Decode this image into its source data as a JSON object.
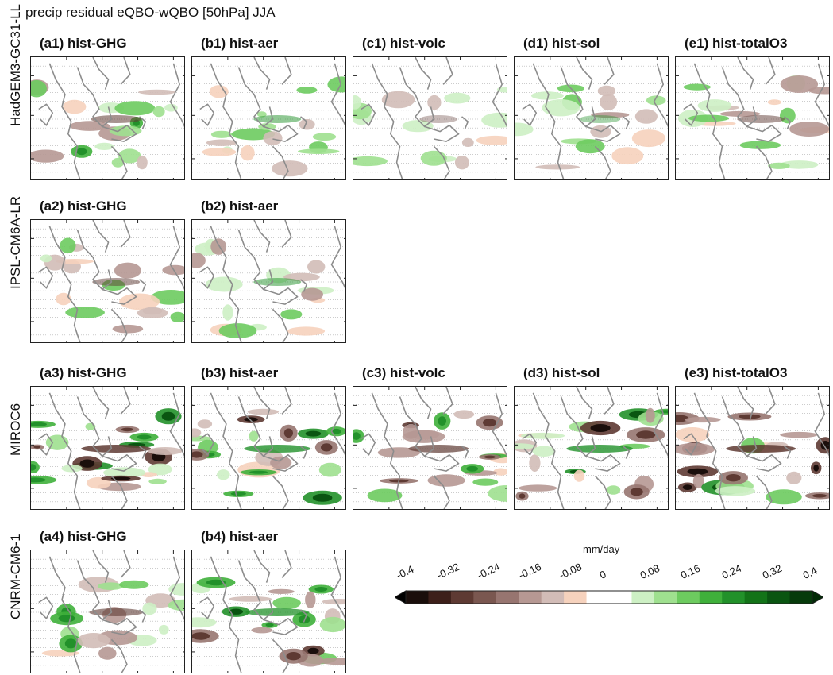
{
  "figure": {
    "title": "precip residual eQBO-wQBO [50hPa] JJA"
  },
  "rows": [
    {
      "model": "HadGEM3-GC31-LL",
      "panels": [
        {
          "label": "(a1)  hist-GHG",
          "seed": 11,
          "intensity": 0.55
        },
        {
          "label": "(b1)  hist-aer",
          "seed": 12,
          "intensity": 0.5
        },
        {
          "label": "(c1)  hist-volc",
          "seed": 13,
          "intensity": 0.35
        },
        {
          "label": "(d1)  hist-sol",
          "seed": 14,
          "intensity": 0.4
        },
        {
          "label": "(e1)  hist-totalO3",
          "seed": 15,
          "intensity": 0.5
        }
      ]
    },
    {
      "model": "IPSL-CM6A-LR",
      "panels": [
        {
          "label": "(a2)  hist-GHG",
          "seed": 21,
          "intensity": 0.5
        },
        {
          "label": "(b2)  hist-aer",
          "seed": 22,
          "intensity": 0.5
        }
      ]
    },
    {
      "model": "MIROC6",
      "panels": [
        {
          "label": "(a3)  hist-GHG",
          "seed": 31,
          "intensity": 0.85
        },
        {
          "label": "(b3)  hist-aer",
          "seed": 32,
          "intensity": 0.8
        },
        {
          "label": "(c3)  hist-volc",
          "seed": 33,
          "intensity": 0.7
        },
        {
          "label": "(d3)  hist-sol",
          "seed": 34,
          "intensity": 0.8
        },
        {
          "label": "(e3)  hist-totalO3",
          "seed": 35,
          "intensity": 0.85
        }
      ]
    },
    {
      "model": "CNRM-CM6-1",
      "panels": [
        {
          "label": "(a4)  hist-GHG",
          "seed": 41,
          "intensity": 0.6
        },
        {
          "label": "(b4)  hist-aer",
          "seed": 42,
          "intensity": 0.75
        }
      ]
    }
  ],
  "colorbar": {
    "unit": "mm/day",
    "ticks": [
      "-0.4",
      "-0.32",
      "-0.24",
      "-0.16",
      "-0.08",
      "0",
      "0.08",
      "0.16",
      "0.24",
      "0.32",
      "0.4"
    ],
    "levels": [
      -0.4,
      -0.32,
      -0.24,
      -0.16,
      -0.08,
      0,
      0.08,
      0.16,
      0.24,
      0.32,
      0.4
    ],
    "colors": [
      "#1a0e0b",
      "#3d1f1a",
      "#5e3a33",
      "#7a5750",
      "#977570",
      "#b69893",
      "#d2bcb7",
      "#f6d2bd",
      "#ffffff",
      "#ffffff",
      "#cdf0c4",
      "#9fe08f",
      "#6dcb5f",
      "#3fb03b",
      "#22912a",
      "#137318",
      "#0a5511",
      "#063a0b"
    ],
    "under_color": "#000000",
    "over_color": "#022a06"
  },
  "chart_data": {
    "type": "heatmap",
    "title": "precip residual eQBO-wQBO [50hPa] JJA",
    "colorbar_label": "mm/day",
    "colorbar_range": [
      -0.4,
      0.4
    ],
    "panels": [
      "(a1)  hist-GHG",
      "(b1)  hist-aer",
      "(c1)  hist-volc",
      "(d1)  hist-sol",
      "(e1)  hist-totalO3",
      "(a2)  hist-GHG",
      "(b2)  hist-aer",
      "(a3)  hist-GHG",
      "(b3)  hist-aer",
      "(c3)  hist-volc",
      "(d3)  hist-sol",
      "(e3)  hist-totalO3",
      "(a4)  hist-GHG",
      "(b4)  hist-aer"
    ],
    "row_labels": [
      "HadGEM3-GC31-LL",
      "IPSL-CM6A-LR",
      "MIROC6",
      "CNRM-CM6-1"
    ]
  }
}
